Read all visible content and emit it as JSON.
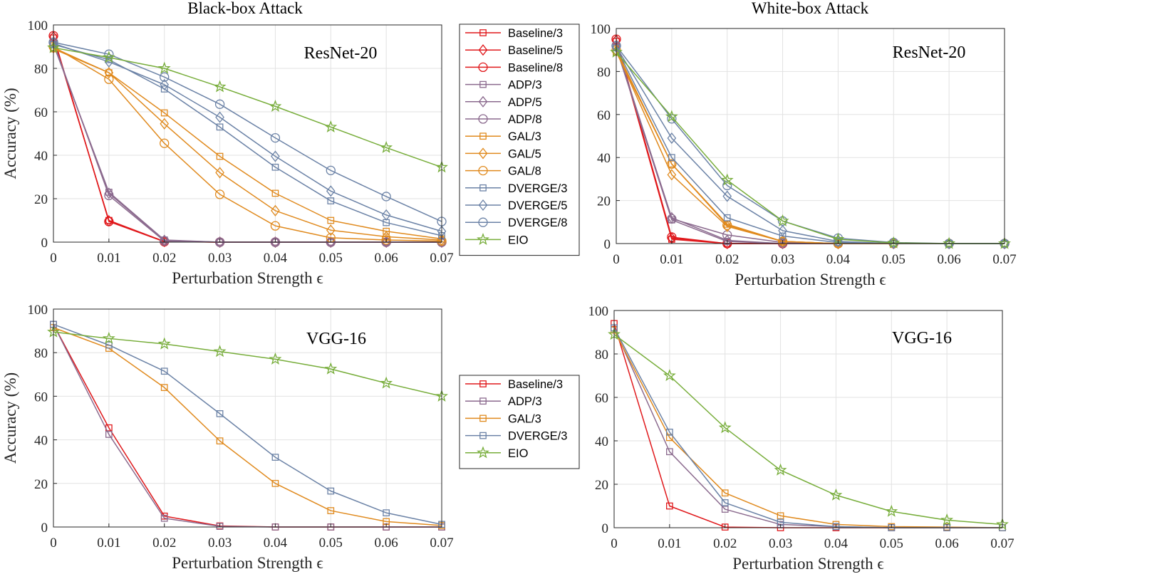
{
  "colors": {
    "Baseline": "#e0191c",
    "ADP": "#8b6a8e",
    "GAL": "#e08a1e",
    "DVERGE": "#6b82a6",
    "EIO": "#77ad3a"
  },
  "chart_data": [
    {
      "id": "bb_resnet",
      "type": "line",
      "title": "Black-box Attack",
      "model_label": "ResNet-20",
      "xlabel": "Perturbation Strength ϵ",
      "ylabel": "Accuracy (%)",
      "x": [
        0,
        0.01,
        0.02,
        0.03,
        0.04,
        0.05,
        0.06,
        0.07
      ],
      "x_tick_labels": [
        "0",
        "0.01",
        "0.02",
        "0.03",
        "0.04",
        "0.05",
        "0.06",
        "0.07"
      ],
      "y_ticks": [
        "0",
        "20",
        "40",
        "60",
        "80",
        "100"
      ],
      "ylim": [
        0,
        100
      ],
      "grid": true,
      "series": [
        {
          "name": "Baseline/3",
          "group": "Baseline",
          "marker": "square",
          "values": [
            94,
            10,
            0.3,
            0,
            0,
            0,
            0,
            0
          ]
        },
        {
          "name": "Baseline/5",
          "group": "Baseline",
          "marker": "diamond",
          "values": [
            94.5,
            9.8,
            0.3,
            0,
            0,
            0,
            0,
            0
          ]
        },
        {
          "name": "Baseline/8",
          "group": "Baseline",
          "marker": "circle",
          "values": [
            95,
            9.5,
            0.2,
            0,
            0,
            0,
            0,
            0
          ]
        },
        {
          "name": "ADP/3",
          "group": "ADP",
          "marker": "square",
          "values": [
            91,
            23,
            1,
            0,
            0,
            0,
            0,
            0
          ]
        },
        {
          "name": "ADP/5",
          "group": "ADP",
          "marker": "diamond",
          "values": [
            91.5,
            22.5,
            0.8,
            0,
            0,
            0,
            0,
            0
          ]
        },
        {
          "name": "ADP/8",
          "group": "ADP",
          "marker": "circle",
          "values": [
            92,
            21.5,
            0.5,
            0,
            0,
            0,
            0,
            0
          ]
        },
        {
          "name": "GAL/3",
          "group": "GAL",
          "marker": "square",
          "values": [
            89,
            78,
            59.5,
            39.5,
            22.5,
            10,
            5,
            1.5
          ]
        },
        {
          "name": "GAL/5",
          "group": "GAL",
          "marker": "diamond",
          "values": [
            89.5,
            78,
            54.5,
            32,
            14.5,
            5.5,
            2.5,
            1
          ]
        },
        {
          "name": "GAL/8",
          "group": "GAL",
          "marker": "circle",
          "values": [
            90,
            75,
            45.5,
            22,
            7.5,
            2,
            1,
            0.5
          ]
        },
        {
          "name": "DVERGE/3",
          "group": "DVERGE",
          "marker": "square",
          "values": [
            91,
            84,
            70.5,
            53,
            34.5,
            19,
            9,
            3
          ]
        },
        {
          "name": "DVERGE/5",
          "group": "DVERGE",
          "marker": "diamond",
          "values": [
            91.5,
            83,
            72.5,
            57.5,
            39.5,
            23.5,
            12.5,
            5
          ]
        },
        {
          "name": "DVERGE/8",
          "group": "DVERGE",
          "marker": "circle",
          "values": [
            92,
            86.5,
            76,
            63.5,
            48,
            33,
            21,
            9.5
          ]
        },
        {
          "name": "EIO",
          "group": "EIO",
          "marker": "star",
          "values": [
            89.5,
            85,
            80,
            71.5,
            62.5,
            53,
            43.5,
            34.5
          ]
        }
      ]
    },
    {
      "id": "wb_resnet",
      "type": "line",
      "title": "White-box Attack",
      "model_label": "ResNet-20",
      "xlabel": "Perturbation Strength ϵ",
      "ylabel": "",
      "x": [
        0,
        0.01,
        0.02,
        0.03,
        0.04,
        0.05,
        0.06,
        0.07
      ],
      "x_tick_labels": [
        "0",
        "0.01",
        "0.02",
        "0.03",
        "0.04",
        "0.05",
        "0.06",
        "0.07"
      ],
      "y_ticks": [
        "0",
        "20",
        "40",
        "60",
        "80",
        "100"
      ],
      "ylim": [
        0,
        100
      ],
      "grid": true,
      "series": [
        {
          "name": "Baseline/3",
          "group": "Baseline",
          "marker": "square",
          "values": [
            94,
            2,
            0,
            0,
            0,
            0,
            0,
            0
          ]
        },
        {
          "name": "Baseline/5",
          "group": "Baseline",
          "marker": "diamond",
          "values": [
            94.5,
            2.5,
            0,
            0,
            0,
            0,
            0,
            0
          ]
        },
        {
          "name": "Baseline/8",
          "group": "Baseline",
          "marker": "circle",
          "values": [
            95,
            3,
            0,
            0,
            0,
            0,
            0,
            0
          ]
        },
        {
          "name": "ADP/3",
          "group": "ADP",
          "marker": "square",
          "values": [
            91,
            11,
            1,
            0,
            0,
            0,
            0,
            0
          ]
        },
        {
          "name": "ADP/5",
          "group": "ADP",
          "marker": "diamond",
          "values": [
            91.5,
            12,
            1.5,
            0,
            0,
            0,
            0,
            0
          ]
        },
        {
          "name": "ADP/8",
          "group": "ADP",
          "marker": "circle",
          "values": [
            92,
            11.5,
            4,
            0.5,
            0,
            0,
            0,
            0
          ]
        },
        {
          "name": "GAL/3",
          "group": "GAL",
          "marker": "square",
          "values": [
            89,
            37,
            9,
            1,
            0,
            0,
            0,
            0
          ]
        },
        {
          "name": "GAL/5",
          "group": "GAL",
          "marker": "diamond",
          "values": [
            89.5,
            32,
            8,
            1,
            0,
            0,
            0,
            0
          ]
        },
        {
          "name": "GAL/8",
          "group": "GAL",
          "marker": "circle",
          "values": [
            90,
            37,
            8.5,
            1,
            0,
            0,
            0,
            0
          ]
        },
        {
          "name": "DVERGE/3",
          "group": "DVERGE",
          "marker": "square",
          "values": [
            91,
            40,
            12,
            3.5,
            0.5,
            0,
            0,
            0
          ]
        },
        {
          "name": "DVERGE/5",
          "group": "DVERGE",
          "marker": "diamond",
          "values": [
            91.5,
            49,
            22,
            6,
            1,
            0,
            0,
            0
          ]
        },
        {
          "name": "DVERGE/8",
          "group": "DVERGE",
          "marker": "circle",
          "values": [
            92,
            58,
            27,
            10.5,
            2.5,
            0.5,
            0,
            0
          ]
        },
        {
          "name": "EIO",
          "group": "EIO",
          "marker": "star",
          "values": [
            89,
            59,
            29.5,
            10.5,
            2,
            0.3,
            0,
            0
          ]
        }
      ]
    },
    {
      "id": "bb_vgg",
      "type": "line",
      "title": "",
      "model_label": "VGG-16",
      "xlabel": "Perturbation Strength ϵ",
      "ylabel": "Accuracy (%)",
      "x": [
        0,
        0.01,
        0.02,
        0.03,
        0.04,
        0.05,
        0.06,
        0.07
      ],
      "x_tick_labels": [
        "0",
        "0.01",
        "0.02",
        "0.03",
        "0.04",
        "0.05",
        "0.06",
        "0.07"
      ],
      "y_ticks": [
        "0",
        "20",
        "40",
        "60",
        "80",
        "100"
      ],
      "ylim": [
        0,
        100
      ],
      "grid": true,
      "series": [
        {
          "name": "Baseline/3",
          "group": "Baseline",
          "marker": "square",
          "values": [
            93,
            45.5,
            5,
            0.5,
            0,
            0,
            0,
            0
          ]
        },
        {
          "name": "ADP/3",
          "group": "ADP",
          "marker": "square",
          "values": [
            93,
            42.5,
            4,
            0.3,
            0,
            0,
            0,
            0
          ]
        },
        {
          "name": "GAL/3",
          "group": "GAL",
          "marker": "square",
          "values": [
            91.5,
            82,
            64,
            39.5,
            20,
            7.5,
            2.5,
            0.7
          ]
        },
        {
          "name": "DVERGE/3",
          "group": "DVERGE",
          "marker": "square",
          "values": [
            93,
            83.5,
            71.5,
            52,
            32,
            16.5,
            6.5,
            1.2
          ]
        },
        {
          "name": "EIO",
          "group": "EIO",
          "marker": "star",
          "values": [
            89.5,
            86.5,
            84,
            80.5,
            77,
            72.5,
            66,
            60
          ]
        }
      ]
    },
    {
      "id": "wb_vgg",
      "type": "line",
      "title": "",
      "model_label": "VGG-16",
      "xlabel": "Perturbation Strength ϵ",
      "ylabel": "",
      "x": [
        0,
        0.01,
        0.02,
        0.03,
        0.04,
        0.05,
        0.06,
        0.07
      ],
      "x_tick_labels": [
        "0",
        "0.01",
        "0.02",
        "0.03",
        "0.04",
        "0.05",
        "0.06",
        "0.07"
      ],
      "y_ticks": [
        "0",
        "20",
        "40",
        "60",
        "80",
        "100"
      ],
      "ylim": [
        0,
        100
      ],
      "grid": true,
      "series": [
        {
          "name": "Baseline/3",
          "group": "Baseline",
          "marker": "square",
          "values": [
            94,
            10,
            0.3,
            0,
            0,
            0,
            0,
            0
          ]
        },
        {
          "name": "ADP/3",
          "group": "ADP",
          "marker": "square",
          "values": [
            92,
            35,
            8.5,
            1.5,
            0.5,
            0,
            0,
            0
          ]
        },
        {
          "name": "GAL/3",
          "group": "GAL",
          "marker": "square",
          "values": [
            91,
            41.5,
            16,
            5.5,
            1.5,
            0.5,
            0.3,
            0
          ]
        },
        {
          "name": "DVERGE/3",
          "group": "DVERGE",
          "marker": "square",
          "values": [
            92,
            44,
            11.5,
            2.5,
            0.5,
            0,
            0,
            0
          ]
        },
        {
          "name": "EIO",
          "group": "EIO",
          "marker": "star",
          "values": [
            89,
            70,
            46,
            26.5,
            15,
            7.5,
            3.5,
            1.5
          ]
        }
      ]
    }
  ],
  "legends": [
    {
      "id": "legend_top",
      "entries": [
        {
          "label": "Baseline/3",
          "group": "Baseline",
          "marker": "square"
        },
        {
          "label": "Baseline/5",
          "group": "Baseline",
          "marker": "diamond"
        },
        {
          "label": "Baseline/8",
          "group": "Baseline",
          "marker": "circle"
        },
        {
          "label": "ADP/3",
          "group": "ADP",
          "marker": "square"
        },
        {
          "label": "ADP/5",
          "group": "ADP",
          "marker": "diamond"
        },
        {
          "label": "ADP/8",
          "group": "ADP",
          "marker": "circle"
        },
        {
          "label": "GAL/3",
          "group": "GAL",
          "marker": "square"
        },
        {
          "label": "GAL/5",
          "group": "GAL",
          "marker": "diamond"
        },
        {
          "label": "GAL/8",
          "group": "GAL",
          "marker": "circle"
        },
        {
          "label": "DVERGE/3",
          "group": "DVERGE",
          "marker": "square"
        },
        {
          "label": "DVERGE/5",
          "group": "DVERGE",
          "marker": "diamond"
        },
        {
          "label": "DVERGE/8",
          "group": "DVERGE",
          "marker": "circle"
        },
        {
          "label": "EIO",
          "group": "EIO",
          "marker": "star"
        }
      ]
    },
    {
      "id": "legend_bottom",
      "entries": [
        {
          "label": "Baseline/3",
          "group": "Baseline",
          "marker": "square"
        },
        {
          "label": "ADP/3",
          "group": "ADP",
          "marker": "square"
        },
        {
          "label": "GAL/3",
          "group": "GAL",
          "marker": "square"
        },
        {
          "label": "DVERGE/3",
          "group": "DVERGE",
          "marker": "square"
        },
        {
          "label": "EIO",
          "group": "EIO",
          "marker": "star"
        }
      ]
    }
  ]
}
